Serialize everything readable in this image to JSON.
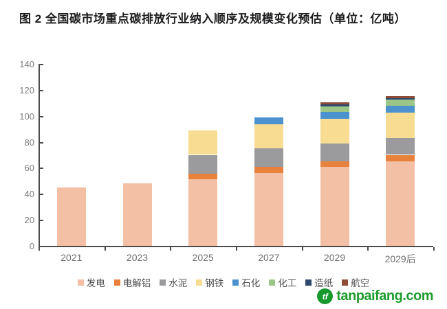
{
  "title": "图 2 全国碳市场重点碳排放行业纳入顺序及规模变化预估（单位：亿吨）",
  "watermark": {
    "icon_text": "tf",
    "text": "tanpaifang.com",
    "color": "#1f9d2e"
  },
  "chart_data": {
    "type": "bar",
    "stacked": true,
    "title": "图 2 全国碳市场重点碳排放行业纳入顺序及规模变化预估（单位：亿吨）",
    "unit": "亿吨",
    "categories": [
      "2021",
      "2023",
      "2025",
      "2027",
      "2029",
      "2029后"
    ],
    "series": [
      {
        "name": "发电",
        "color": "#F4C0A5",
        "values": [
          45,
          48,
          51,
          56,
          61,
          65
        ]
      },
      {
        "name": "电解铝",
        "color": "#E8813B",
        "values": [
          0,
          0,
          4.5,
          4.5,
          4,
          5
        ]
      },
      {
        "name": "水泥",
        "color": "#9B9B9D",
        "values": [
          0,
          0,
          14.5,
          14.5,
          13.5,
          13
        ]
      },
      {
        "name": "钢铁",
        "color": "#F7DC92",
        "values": [
          0,
          0,
          19,
          18.5,
          19,
          19.5
        ]
      },
      {
        "name": "石化",
        "color": "#4C92CE",
        "values": [
          0,
          0,
          0,
          5.5,
          5.5,
          5.5
        ]
      },
      {
        "name": "化工",
        "color": "#9CC687",
        "values": [
          0,
          0,
          0,
          0,
          4.5,
          4.5
        ]
      },
      {
        "name": "造纸",
        "color": "#2E4A6E",
        "values": [
          0,
          0,
          0,
          0,
          1.5,
          1
        ]
      },
      {
        "name": "航空",
        "color": "#8E4B37",
        "values": [
          0,
          0,
          0,
          0,
          1.5,
          1.5
        ]
      }
    ],
    "totals": [
      45,
      48,
      89,
      99,
      110.5,
      115
    ],
    "xlabel": "",
    "ylabel": "",
    "ylim": [
      0,
      140
    ],
    "ytick_step": 20,
    "ytick_labels": [
      "0",
      "20",
      "40",
      "60",
      "80",
      "100",
      "120",
      "140"
    ],
    "grid": false,
    "legend_position": "bottom"
  }
}
